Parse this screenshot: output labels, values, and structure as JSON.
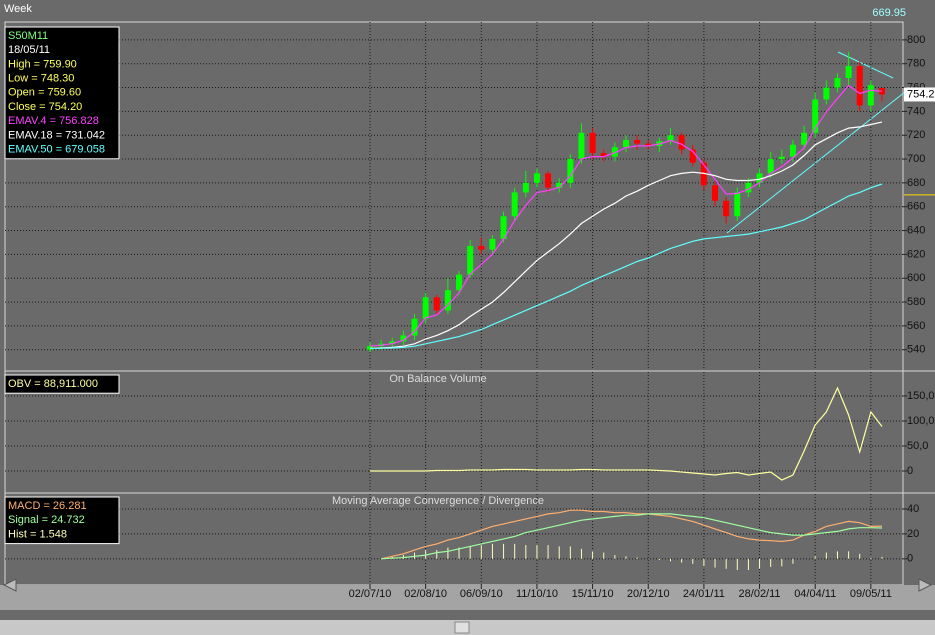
{
  "window_label": "Week",
  "chart_data": [
    {
      "type": "candlestick",
      "cursor_price": 669.95,
      "info": [
        {
          "text": "S50M11",
          "color": "#80ff80"
        },
        {
          "text": "18/05/11",
          "color": "#ffffff"
        },
        {
          "text": "High  = 759.90",
          "color": "#ffff60"
        },
        {
          "text": "Low  = 748.30",
          "color": "#ffff60"
        },
        {
          "text": "Open = 759.60",
          "color": "#ffff60"
        },
        {
          "text": "Close = 754.20",
          "color": "#ffff60"
        },
        {
          "text": "EMAV.4 = 756.828",
          "color": "#ff40ff"
        },
        {
          "text": "EMAV.18 = 731.042",
          "color": "#ffffff"
        },
        {
          "text": "EMAV.50 = 679.058",
          "color": "#60ffff"
        }
      ],
      "categories": [
        "02/07/10",
        null,
        null,
        null,
        null,
        "02/08/10",
        null,
        null,
        null,
        null,
        "06/09/10",
        null,
        null,
        null,
        null,
        "11/10/10",
        null,
        null,
        null,
        null,
        "15/11/10",
        null,
        null,
        null,
        null,
        "20/12/10",
        null,
        null,
        null,
        null,
        "24/01/11",
        null,
        null,
        null,
        null,
        "28/02/11",
        null,
        null,
        null,
        null,
        "04/04/11",
        null,
        null,
        null,
        null,
        "09/05/11",
        null
      ],
      "open": [
        540,
        543,
        545,
        547,
        552,
        566,
        584,
        573,
        590,
        603,
        627,
        624,
        633,
        652,
        672,
        680,
        688,
        676,
        680,
        700,
        722,
        705,
        702,
        710,
        716,
        713,
        711,
        715,
        720,
        708,
        697,
        678,
        665,
        652,
        672,
        680,
        688,
        700,
        702,
        712,
        722,
        750,
        760,
        768,
        778,
        745,
        759.6
      ],
      "high": [
        546,
        548,
        550,
        556,
        570,
        588,
        586,
        600,
        606,
        632,
        634,
        636,
        656,
        676,
        690,
        692,
        690,
        684,
        704,
        730,
        726,
        708,
        714,
        720,
        720,
        716,
        718,
        726,
        722,
        712,
        700,
        682,
        668,
        676,
        684,
        692,
        706,
        708,
        716,
        728,
        756,
        766,
        772,
        790,
        782,
        766,
        759.9
      ],
      "low": [
        538,
        540,
        542,
        544,
        548,
        562,
        570,
        570,
        586,
        600,
        620,
        620,
        630,
        648,
        668,
        676,
        672,
        672,
        676,
        696,
        700,
        698,
        698,
        706,
        708,
        708,
        706,
        712,
        704,
        694,
        674,
        660,
        646,
        648,
        668,
        676,
        684,
        696,
        698,
        708,
        718,
        746,
        756,
        762,
        740,
        740,
        748.3
      ],
      "close": [
        543,
        545,
        547,
        552,
        566,
        584,
        573,
        590,
        603,
        627,
        624,
        633,
        652,
        672,
        680,
        688,
        676,
        680,
        700,
        722,
        705,
        702,
        710,
        716,
        713,
        711,
        715,
        720,
        708,
        697,
        678,
        665,
        652,
        672,
        680,
        688,
        700,
        702,
        712,
        722,
        750,
        760,
        768,
        778,
        745,
        762,
        754.2
      ],
      "up_color": "#00ff00",
      "down_color": "#ff0000",
      "series": [
        {
          "name": "EMAV.4",
          "color": "#ff40ff",
          "values": [
            543,
            543.8,
            545.1,
            547.9,
            555.1,
            566.7,
            569.2,
            577.5,
            587.7,
            603.4,
            611.6,
            620.2,
            632.9,
            648.5,
            661.1,
            671.9,
            673.5,
            676.1,
            685.7,
            700.2,
            702.1,
            702.1,
            705.3,
            709.6,
            711,
            711,
            712.6,
            715.6,
            712.5,
            706.3,
            695,
            683,
            670.6,
            671.2,
            674.7,
            680,
            688,
            693.6,
            701,
            709.4,
            725.6,
            739.4,
            750.8,
            761.7,
            755,
            757.8,
            756.828
          ]
        },
        {
          "name": "EMAV.18",
          "color": "#ffffff",
          "values": [
            541,
            541.5,
            542,
            543,
            545,
            549,
            552,
            556,
            561,
            568,
            574,
            580,
            588,
            597,
            606,
            615,
            622,
            629,
            637,
            646,
            652,
            658,
            663,
            669,
            673,
            678,
            682,
            686,
            688,
            689,
            688,
            686,
            683,
            682,
            682,
            683,
            686,
            690,
            695,
            703,
            712,
            717,
            722,
            726,
            727,
            729,
            731.042
          ]
        },
        {
          "name": "EMAV.50",
          "color": "#60ffff",
          "values": [
            541,
            541.2,
            541.5,
            542,
            543,
            545,
            547,
            549,
            551,
            554,
            557,
            561,
            565,
            569,
            573,
            577,
            581,
            585,
            589,
            594,
            598,
            602,
            606,
            610,
            614,
            617,
            621,
            625,
            628,
            631,
            633,
            634,
            635,
            636,
            637,
            639,
            641,
            643,
            646,
            649,
            654,
            659,
            664,
            669,
            672,
            676,
            679.058
          ]
        }
      ],
      "ylim": [
        523,
        815
      ],
      "yticks": [
        540,
        560,
        580,
        600,
        620,
        640,
        660,
        680,
        700,
        720,
        740,
        760,
        780,
        800
      ],
      "grid": true
    },
    {
      "type": "line",
      "title": "On Balance Volume",
      "info": [
        {
          "text": "OBV = 88,911.000",
          "color": "#ffffa0"
        }
      ],
      "series": [
        {
          "color": "#ffffa0",
          "values": [
            0,
            0,
            0,
            0,
            0,
            0,
            1,
            1,
            1,
            2,
            2,
            2,
            3,
            3,
            3,
            2,
            2,
            2,
            2,
            3,
            3,
            2,
            2,
            2,
            2,
            2,
            1,
            0,
            -2,
            -4,
            -6,
            -8,
            -5,
            -3,
            -8,
            -5,
            -2,
            -18,
            -8,
            40,
            92,
            118,
            166,
            112,
            38,
            118,
            88.911
          ]
        }
      ],
      "ylim": [
        -42,
        198
      ],
      "yticks": [
        0,
        {
          "value": 50,
          "label": "50,0"
        },
        {
          "value": 100,
          "label": "100,0"
        },
        {
          "value": 150,
          "label": "150,0"
        }
      ],
      "grid": true
    },
    {
      "type": "macd",
      "title": "Moving Average Convergence / Divergence",
      "info": [
        {
          "text": "MACD = 26.281",
          "color": "#ffb070"
        },
        {
          "text": "Signal = 24.732",
          "color": "#a0ffa0"
        },
        {
          "text": "Hist = 1.548",
          "color": "#ffffc0"
        }
      ],
      "series": [
        {
          "color": "#ffb070",
          "values": [
            null,
            0,
            2,
            4,
            7,
            10,
            12,
            15,
            17,
            20,
            23,
            26,
            28,
            30,
            32,
            34,
            36,
            37,
            39,
            39,
            38,
            38,
            37,
            37,
            36,
            36,
            35,
            34,
            32,
            30,
            27,
            24,
            21,
            18,
            16,
            15,
            14.5,
            14,
            15,
            19,
            22,
            26,
            28,
            30,
            29,
            26,
            26.281
          ]
        },
        {
          "color": "#a0ffa0",
          "values": [
            null,
            0,
            0.5,
            1,
            2,
            3,
            5,
            6,
            8,
            10,
            12,
            14,
            16,
            18,
            21,
            23,
            25,
            27,
            29,
            31,
            32,
            33,
            34,
            35,
            35,
            36,
            36,
            36,
            35,
            34,
            33,
            31,
            29,
            27,
            25,
            23,
            21,
            20,
            19,
            19,
            20,
            21,
            22,
            24,
            25,
            25,
            24.732
          ]
        }
      ],
      "hist": {
        "color": "#ffffc0",
        "values": [
          null,
          0,
          1.5,
          3,
          5,
          7,
          7,
          9,
          9,
          10,
          11,
          12,
          12,
          12,
          11,
          11,
          11,
          10,
          10,
          8,
          6,
          5,
          3,
          2,
          1,
          0,
          -1,
          -2,
          -3,
          -4,
          -6,
          -7,
          -8,
          -9,
          -9,
          -8,
          -6.5,
          -6,
          -4,
          0,
          2,
          5,
          6,
          6,
          4,
          1,
          1.548
        ]
      },
      "ylim": [
        -21,
        52
      ],
      "yticks": [
        0,
        20,
        40
      ],
      "grid": true
    }
  ]
}
